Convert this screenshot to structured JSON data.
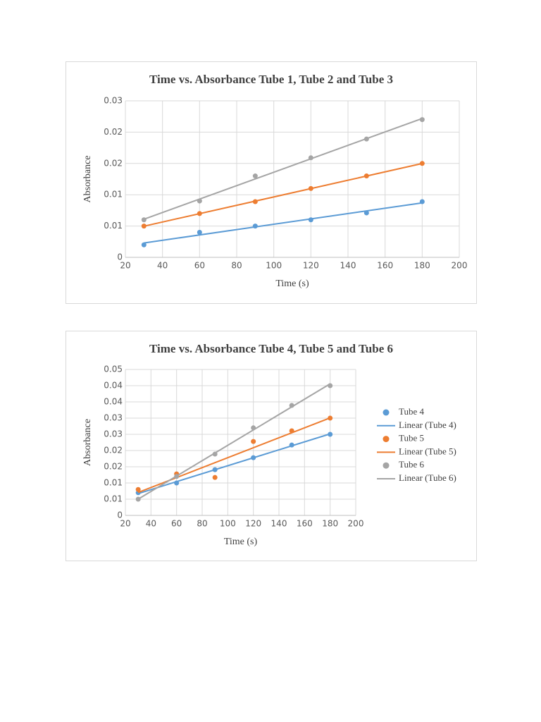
{
  "chart_data": [
    {
      "type": "scatter",
      "title": "Time vs. Absorbance Tube 1, Tube 2 and Tube 3",
      "x_label": "Time (s)",
      "y_label": "Absorbance",
      "trendline": "linear",
      "grid": true,
      "x": [
        30,
        60,
        90,
        120,
        150,
        180
      ],
      "series": [
        {
          "color": "#5b9bd5",
          "values": [
            0.002,
            0.004,
            0.005,
            0.006,
            0.0071,
            0.0089
          ]
        },
        {
          "color": "#ed7d31",
          "values": [
            0.005,
            0.007,
            0.0089,
            0.011,
            0.013,
            0.015
          ]
        },
        {
          "color": "#a5a5a5",
          "values": [
            0.006,
            0.009,
            0.013,
            0.0159,
            0.0189,
            0.022
          ]
        }
      ],
      "xlim": [
        20,
        200
      ],
      "xticks": [
        20,
        40,
        60,
        80,
        100,
        120,
        140,
        160,
        180,
        200
      ],
      "ylim": [
        0,
        0.025
      ],
      "yticks": [
        0,
        {
          "value": 0.005,
          "label": "0.01"
        },
        0.01,
        {
          "value": 0.015,
          "label": "0.02"
        },
        0.02,
        {
          "value": 0.025,
          "label": "0.03"
        }
      ]
    },
    {
      "type": "scatter",
      "title": "Time vs. Absorbance Tube 4, Tube 5 and Tube 6",
      "x_label": "Time (s)",
      "y_label": "Absorbance",
      "trendline": "linear",
      "grid": true,
      "legend": "right",
      "x": [
        30,
        60,
        90,
        120,
        150,
        180
      ],
      "series": [
        {
          "name": "Tube 4",
          "trendline_name": "Linear (Tube 4)",
          "color": "#5b9bd5",
          "values": [
            0.007,
            0.01,
            0.0141,
            0.0178,
            0.0217,
            0.025
          ]
        },
        {
          "name": "Tube 5",
          "trendline_name": "Linear (Tube 5)",
          "color": "#ed7d31",
          "values": [
            0.008,
            0.0128,
            0.0117,
            0.0228,
            0.0261,
            0.03
          ]
        },
        {
          "name": "Tube 6",
          "trendline_name": "Linear (Tube 6)",
          "color": "#a5a5a5",
          "values": [
            0.005,
            0.012,
            0.0189,
            0.027,
            0.0339,
            0.04
          ]
        }
      ],
      "xlim": [
        20,
        200
      ],
      "xticks": [
        20,
        40,
        60,
        80,
        100,
        120,
        140,
        160,
        180,
        200
      ],
      "ylim": [
        0,
        0.045
      ],
      "yticks": [
        0,
        {
          "value": 0.005,
          "label": "0.01"
        },
        0.01,
        {
          "value": 0.015,
          "label": "0.02"
        },
        0.02,
        {
          "value": 0.025,
          "label": "0.03"
        },
        0.03,
        {
          "value": 0.035,
          "label": "0.04"
        },
        0.04,
        {
          "value": 0.045,
          "label": "0.05"
        }
      ]
    }
  ]
}
